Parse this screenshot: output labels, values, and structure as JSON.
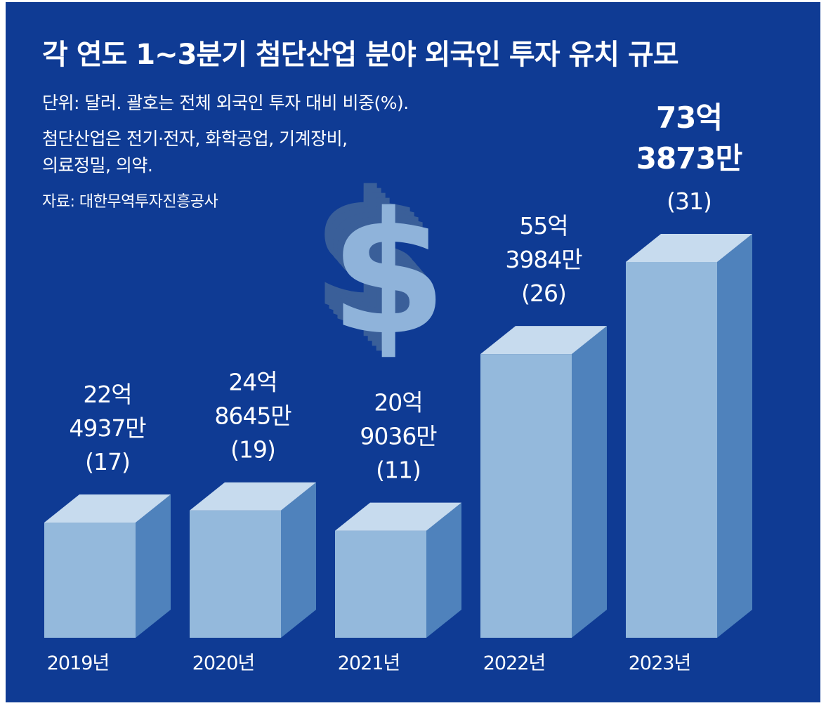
{
  "title": "각 연도 1~3분기 첨단산업 분야 외국인 투자 유치 규모",
  "notes": {
    "unit": "단위: 달러. 괄호는 전체 외국인 투자 대비 비중(%).",
    "definition_line1": "첨단산업은 전기·전자, 화학공업, 기계장비,",
    "definition_line2": "의료정밀, 의약.",
    "source": "자료: 대한무역투자진흥공사"
  },
  "colors": {
    "background": "#0f3b94",
    "bar_front": "#94b9dc",
    "bar_top": "#c7dbee",
    "bar_side": "#4f82bc",
    "text": "#ffffff"
  },
  "icon": "dollar-sign-icon",
  "chart_data": {
    "type": "bar",
    "categories": [
      "2019년",
      "2020년",
      "2021년",
      "2022년",
      "2023년"
    ],
    "values": [
      22.4937,
      24.8645,
      20.9036,
      55.3984,
      73.3873
    ],
    "value_unit": "억 달러",
    "shares_percent": [
      17,
      19,
      11,
      26,
      31
    ],
    "data_labels": [
      {
        "amount_line1": "22억",
        "amount_line2": "4937만",
        "share": "(17)"
      },
      {
        "amount_line1": "24억",
        "amount_line2": "8645만",
        "share": "(19)"
      },
      {
        "amount_line1": "20억",
        "amount_line2": "9036만",
        "share": "(11)"
      },
      {
        "amount_line1": "55억",
        "amount_line2": "3984만",
        "share": "(26)"
      },
      {
        "amount_line1": "73억",
        "amount_line2": "3873만",
        "share": "(31)"
      }
    ],
    "highlight_index": 4,
    "grid": false,
    "legend": "none"
  }
}
